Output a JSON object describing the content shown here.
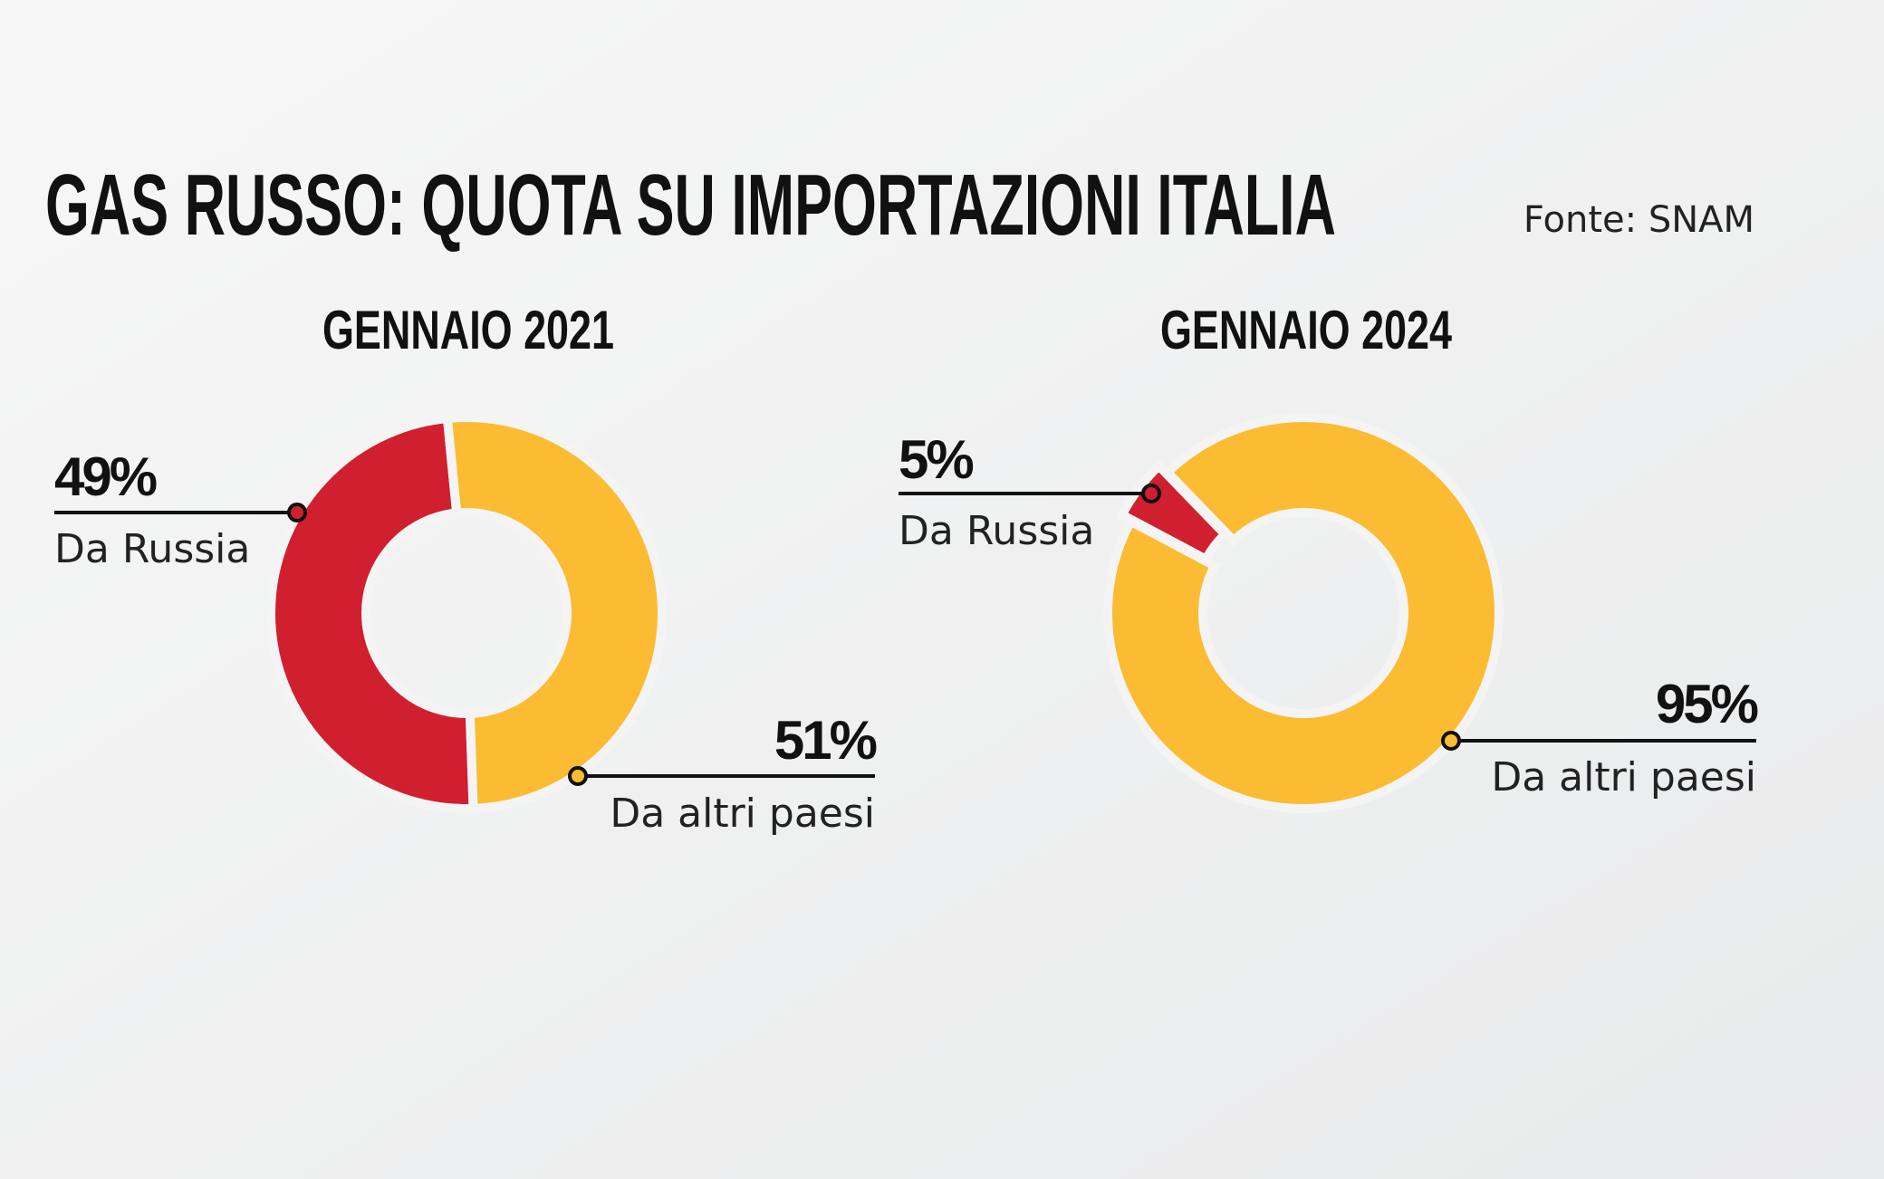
{
  "title": "GAS RUSSO: QUOTA SU IMPORTAZIONI ITALIA",
  "source": "Fonte: SNAM",
  "chart_data": [
    {
      "type": "pie",
      "title": "GENNAIO 2021",
      "categories": [
        "Da Russia",
        "Da altri paesi"
      ],
      "values": [
        49,
        51
      ],
      "value_labels": [
        "49%",
        "51%"
      ],
      "colors": [
        "#d01f2e",
        "#fbbc33"
      ]
    },
    {
      "type": "pie",
      "title": "GENNAIO 2024",
      "categories": [
        "Da Russia",
        "Da altri paesi"
      ],
      "values": [
        5,
        95
      ],
      "value_labels": [
        "5%",
        "95%"
      ],
      "colors": [
        "#d01f2e",
        "#fbbc33"
      ]
    }
  ]
}
